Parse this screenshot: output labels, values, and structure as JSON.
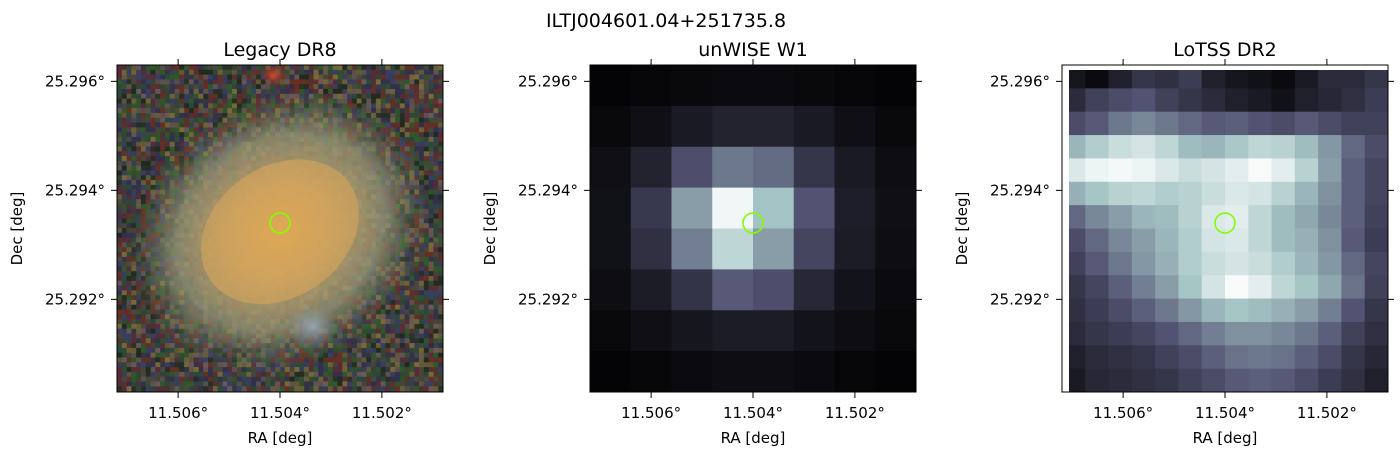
{
  "figure": {
    "title": "ILTJ004601.04+251735.8"
  },
  "chart_data": [
    {
      "type": "heatmap",
      "title": "Legacy DR8",
      "xlabel": "RA [deg]",
      "ylabel": "Dec [deg]",
      "x_ticks": [
        {
          "value": 11.506,
          "label": "11.506°"
        },
        {
          "value": 11.504,
          "label": "11.504°"
        },
        {
          "value": 11.502,
          "label": "11.502°"
        }
      ],
      "y_ticks": [
        {
          "value": 25.296,
          "label": "25.296°"
        },
        {
          "value": 25.294,
          "label": "25.294°"
        },
        {
          "value": 25.292,
          "label": "25.292°"
        }
      ],
      "xlim": [
        11.5072,
        11.5008
      ],
      "ylim": [
        25.2903,
        25.2963
      ],
      "marker": {
        "ra": 11.504,
        "dec": 25.2934,
        "color": "#7fff00"
      },
      "colormap": "rgb-composite"
    },
    {
      "type": "heatmap",
      "title": "unWISE W1",
      "xlabel": "RA [deg]",
      "ylabel": "Dec [deg]",
      "x_ticks": [
        {
          "value": 11.506,
          "label": "11.506°"
        },
        {
          "value": 11.504,
          "label": "11.504°"
        },
        {
          "value": 11.502,
          "label": "11.502°"
        }
      ],
      "y_ticks": [
        {
          "value": 25.296,
          "label": "25.296°"
        },
        {
          "value": 25.294,
          "label": "25.294°"
        },
        {
          "value": 25.292,
          "label": "25.292°"
        }
      ],
      "xlim": [
        11.5072,
        11.5008
      ],
      "ylim": [
        25.2903,
        25.2963
      ],
      "marker": {
        "ra": 11.504,
        "dec": 25.2934,
        "color": "#7fff00"
      },
      "colormap": "bone",
      "grid_values": [
        [
          0.02,
          0.03,
          0.04,
          0.05,
          0.05,
          0.04,
          0.03,
          0.02
        ],
        [
          0.04,
          0.07,
          0.12,
          0.16,
          0.16,
          0.12,
          0.07,
          0.04
        ],
        [
          0.07,
          0.16,
          0.36,
          0.5,
          0.46,
          0.25,
          0.12,
          0.06
        ],
        [
          0.08,
          0.26,
          0.62,
          0.96,
          0.74,
          0.38,
          0.14,
          0.07
        ],
        [
          0.08,
          0.22,
          0.52,
          0.82,
          0.62,
          0.32,
          0.13,
          0.06
        ],
        [
          0.06,
          0.13,
          0.24,
          0.4,
          0.36,
          0.18,
          0.09,
          0.05
        ],
        [
          0.04,
          0.07,
          0.1,
          0.13,
          0.13,
          0.09,
          0.06,
          0.04
        ],
        [
          0.02,
          0.03,
          0.05,
          0.06,
          0.06,
          0.05,
          0.03,
          0.02
        ]
      ]
    },
    {
      "type": "heatmap",
      "title": "LoTSS DR2",
      "xlabel": "RA [deg]",
      "ylabel": "Dec [deg]",
      "x_ticks": [
        {
          "value": 11.506,
          "label": "11.506°"
        },
        {
          "value": 11.504,
          "label": "11.504°"
        },
        {
          "value": 11.502,
          "label": "11.502°"
        }
      ],
      "y_ticks": [
        {
          "value": 25.296,
          "label": "25.296°"
        },
        {
          "value": 25.294,
          "label": "25.294°"
        },
        {
          "value": 25.292,
          "label": "25.292°"
        }
      ],
      "xlim": [
        11.5072,
        11.5008
      ],
      "ylim": [
        25.2903,
        25.2963
      ],
      "marker": {
        "ra": 11.504,
        "dec": 25.2934,
        "color": "#7fff00"
      },
      "colormap": "bone",
      "grid_values": [
        [
          0.1,
          0.05,
          0.15,
          0.25,
          0.22,
          0.28,
          0.15,
          0.1,
          0.08,
          0.05,
          0.12,
          0.2,
          0.2,
          0.25
        ],
        [
          0.2,
          0.3,
          0.35,
          0.38,
          0.3,
          0.25,
          0.2,
          0.15,
          0.12,
          0.08,
          0.15,
          0.18,
          0.22,
          0.28
        ],
        [
          0.35,
          0.4,
          0.5,
          0.55,
          0.5,
          0.45,
          0.4,
          0.42,
          0.38,
          0.35,
          0.4,
          0.35,
          0.3,
          0.3
        ],
        [
          0.7,
          0.78,
          0.85,
          0.88,
          0.82,
          0.72,
          0.7,
          0.76,
          0.82,
          0.8,
          0.72,
          0.6,
          0.45,
          0.35
        ],
        [
          0.9,
          0.95,
          0.97,
          0.95,
          0.9,
          0.85,
          0.88,
          0.92,
          0.98,
          0.92,
          0.8,
          0.62,
          0.42,
          0.32
        ],
        [
          0.68,
          0.75,
          0.8,
          0.82,
          0.78,
          0.8,
          0.85,
          0.9,
          0.88,
          0.8,
          0.7,
          0.58,
          0.42,
          0.32
        ],
        [
          0.45,
          0.55,
          0.62,
          0.7,
          0.72,
          0.8,
          0.9,
          0.92,
          0.82,
          0.72,
          0.65,
          0.55,
          0.42,
          0.3
        ],
        [
          0.35,
          0.45,
          0.55,
          0.62,
          0.7,
          0.78,
          0.88,
          0.9,
          0.82,
          0.72,
          0.68,
          0.58,
          0.4,
          0.28
        ],
        [
          0.3,
          0.4,
          0.5,
          0.6,
          0.68,
          0.78,
          0.85,
          0.88,
          0.85,
          0.78,
          0.7,
          0.6,
          0.45,
          0.32
        ],
        [
          0.25,
          0.32,
          0.42,
          0.52,
          0.62,
          0.75,
          0.88,
          0.98,
          0.92,
          0.82,
          0.75,
          0.65,
          0.48,
          0.3
        ],
        [
          0.22,
          0.28,
          0.35,
          0.42,
          0.5,
          0.6,
          0.7,
          0.75,
          0.72,
          0.68,
          0.62,
          0.52,
          0.38,
          0.25
        ],
        [
          0.2,
          0.25,
          0.28,
          0.32,
          0.38,
          0.45,
          0.52,
          0.58,
          0.58,
          0.55,
          0.5,
          0.42,
          0.3,
          0.22
        ],
        [
          0.15,
          0.2,
          0.22,
          0.25,
          0.3,
          0.35,
          0.42,
          0.48,
          0.5,
          0.48,
          0.42,
          0.35,
          0.25,
          0.18
        ],
        [
          0.12,
          0.18,
          0.2,
          0.22,
          0.25,
          0.3,
          0.35,
          0.4,
          0.42,
          0.4,
          0.35,
          0.28,
          0.22,
          0.15
        ]
      ]
    }
  ]
}
